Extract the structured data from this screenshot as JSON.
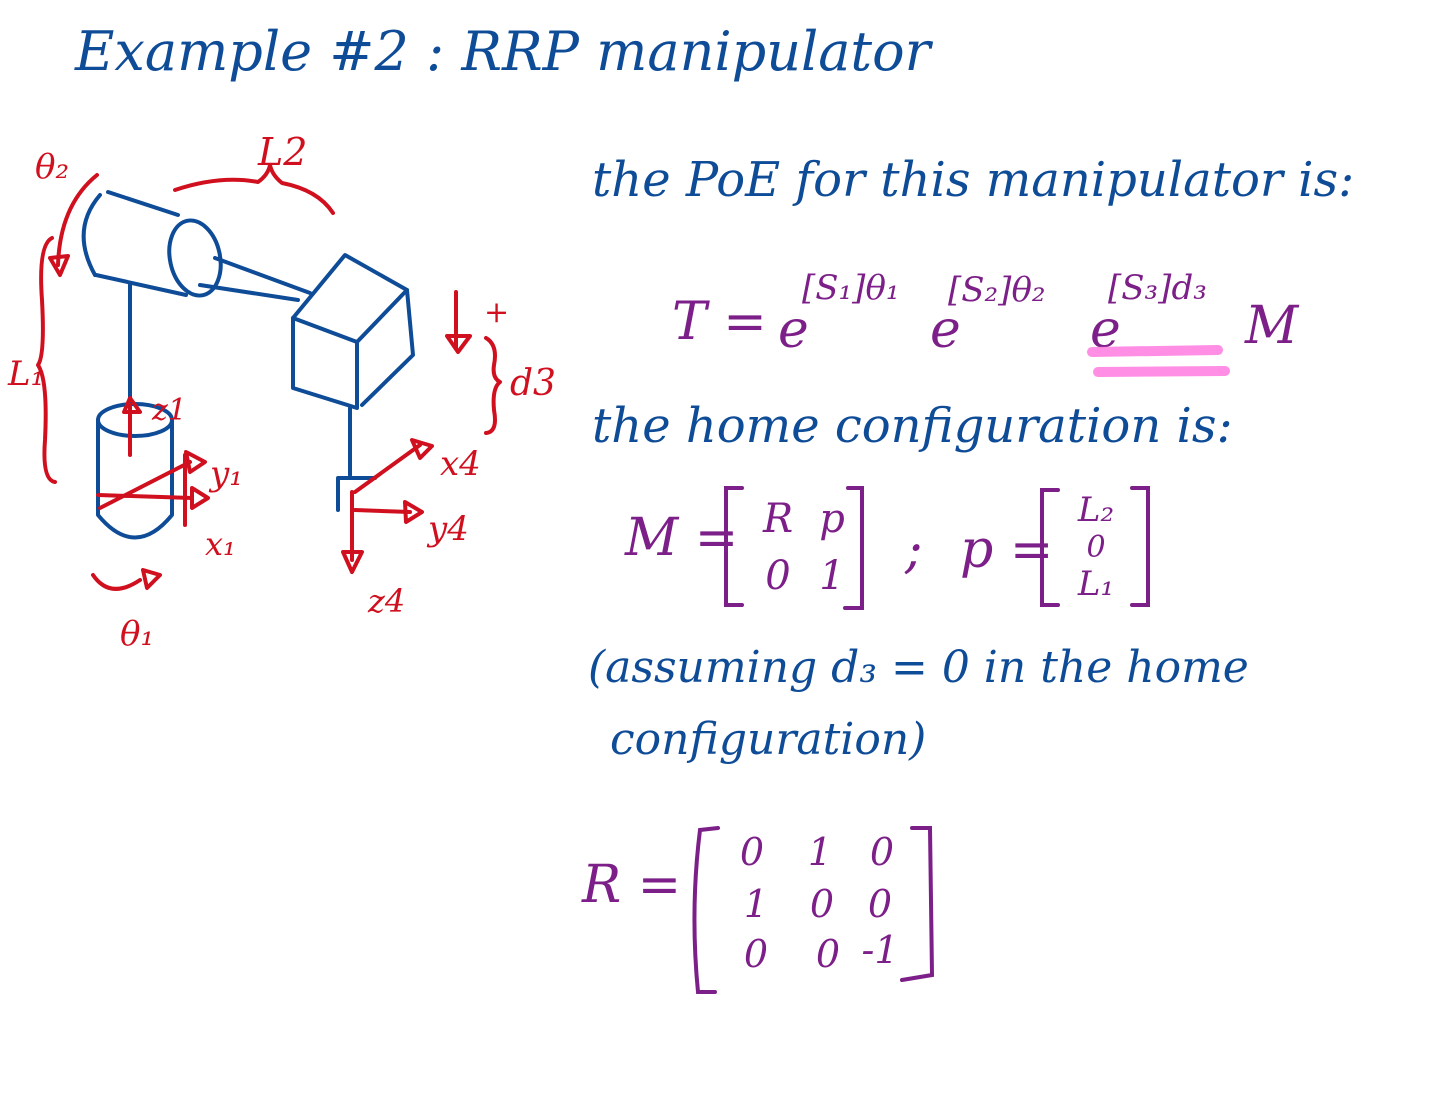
{
  "title": "Example #2 : RRP manipulator",
  "poe_intro": "the PoE for this manipulator is:",
  "equation": {
    "lhs": "T =",
    "base": "e",
    "exp1": "[S₁]θ₁",
    "exp2": "[S₂]θ₂",
    "exp3": "[S₃]d₃",
    "tail": "M"
  },
  "home_intro": "the home configuration is:",
  "M_matrix": {
    "lhs": "M =",
    "cells": [
      "R",
      "p",
      "0",
      "1"
    ],
    "separator": ";"
  },
  "p_vector": {
    "lhs": "p =",
    "cells": [
      "L₂",
      "0",
      "L₁"
    ]
  },
  "assumption_line1": "(assuming d₃ = 0 in the home",
  "assumption_line2": "configuration)",
  "R_matrix": {
    "lhs": "R =",
    "cells": [
      "0",
      "1",
      "0",
      "1",
      "0",
      "0",
      "0",
      "0",
      "-1"
    ]
  },
  "diagram": {
    "labels": {
      "theta2": "θ₂",
      "L2": "L2",
      "L1": "L₁",
      "z1": "z1",
      "y1": "y₁",
      "x1": "x₁",
      "theta1": "θ₁",
      "plus": "+",
      "d3": "d3",
      "x4": "x4",
      "y4": "y4",
      "z4": "z4"
    }
  }
}
